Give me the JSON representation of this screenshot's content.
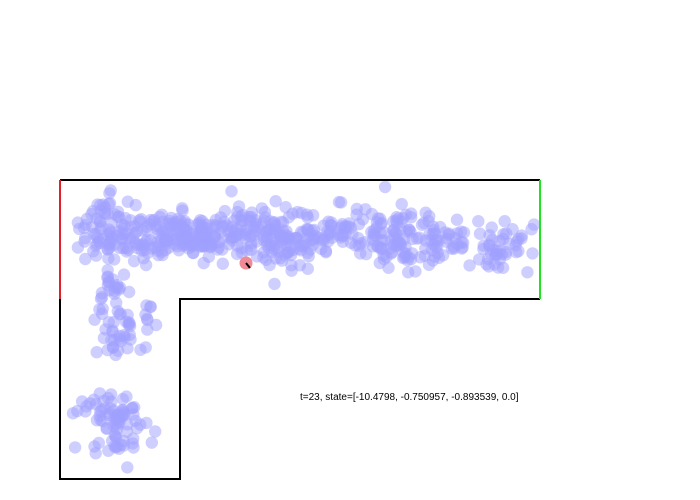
{
  "status": {
    "t": 23,
    "state": [
      -10.4798,
      -0.750957,
      -0.893539,
      0.0
    ],
    "text": "t=23, state=[-10.4798, -0.750957, -0.893539, 0.0]"
  },
  "colors": {
    "wall": "#000000",
    "start_wall": "#e0202a",
    "goal_wall": "#22e022",
    "particle": "#a0a0ff",
    "agent": "#f08a96",
    "agent_heading": "#000000"
  },
  "environment": {
    "shape": "L-shaped corridor",
    "start_edge": "left-end-red",
    "goal_edge": "right-end-green"
  }
}
